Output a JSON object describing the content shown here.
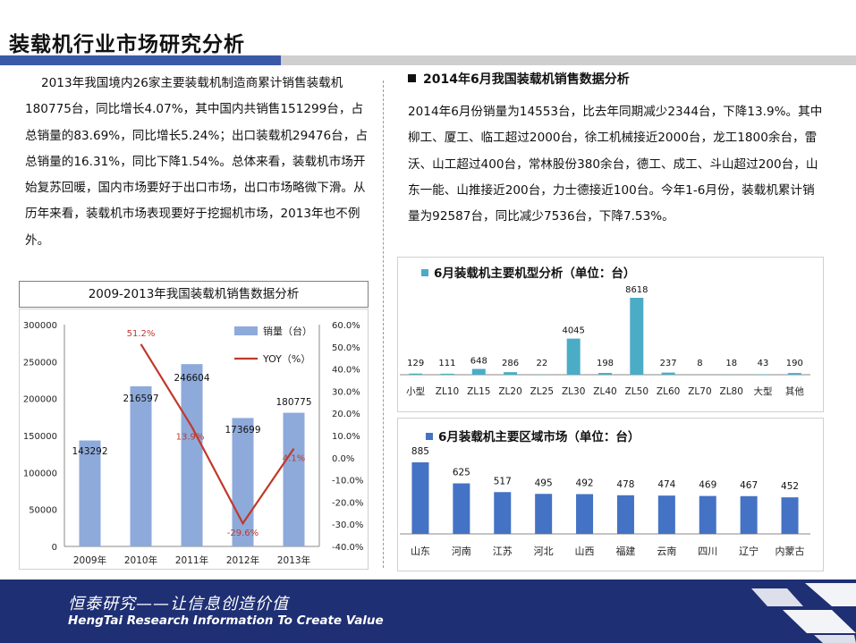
{
  "page": {
    "title": "装载机行业市场研究分析",
    "left_paragraph": "2013年我国境内26家主要装载机制造商累计销售装载机180775台，同比增长4.07%，其中国内共销售151299台，占总销量的83.69%，同比增长5.24%；出口装载机29476台，占总销量的16.31%，同比下降1.54%。总体来看，装载机市场开始复苏回暖，国内市场要好于出口市场，出口市场略微下滑。从历年来看，装载机市场表现要好于挖掘机市场，2013年也不例外。",
    "right_heading": "2014年6月我国装载机销售数据分析",
    "right_paragraph": "2014年6月份销量为14553台，比去年同期减少2344台，下降13.9%。其中柳工、厦工、临工超过2000台，徐工机械接近2000台，龙工1800余台，雷沃、山工超过400台，常林股份380余台，德工、成工、斗山超过200台，山东一能、山推接近200台，力士德接近100台。今年1-6月份，装载机累计销量为92587台，同比减少7536台，下降7.53%。",
    "chart1_box_title": "2009-2013年我国装载机销售数据分析"
  },
  "footer": {
    "slogan_cn": "恒泰研究——让信息创造价值",
    "slogan_en": "HengTai Research Information To Create Value"
  },
  "colors": {
    "bar_blue_light": "#8eaadb",
    "line_red": "#c0392b",
    "bar_teal": "#4bacc6",
    "bar_blue": "#4472c4",
    "footer_navy": "#1e2f73",
    "title_blue": "#3a5aa8"
  },
  "chart_data": [
    {
      "type": "bar",
      "secondary_type": "line",
      "categories": [
        "2009年",
        "2010年",
        "2011年",
        "2012年",
        "2013年"
      ],
      "series": [
        {
          "name": "销量（台）",
          "values": [
            143292,
            216597,
            246604,
            173699,
            180775
          ],
          "axis": "left",
          "labels": [
            "143292",
            "216597",
            "246604",
            "173699",
            "180775"
          ]
        },
        {
          "name": "YOY（%）",
          "values": [
            null,
            51.2,
            13.9,
            -29.6,
            4.1
          ],
          "axis": "right",
          "labels": [
            "",
            "51.2%",
            "13.9%",
            "-29.6%",
            "4.1%"
          ]
        }
      ],
      "ylim": [
        0,
        300000
      ],
      "y_ticks": [
        "0",
        "50000",
        "100000",
        "150000",
        "200000",
        "250000",
        "300000"
      ],
      "y2lim": [
        -40,
        60
      ],
      "y2_ticks": [
        "-40.0%",
        "-30.0%",
        "-20.0%",
        "-10.0%",
        "0.0%",
        "10.0%",
        "20.0%",
        "30.0%",
        "40.0%",
        "50.0%",
        "60.0%"
      ],
      "legend": "top-right"
    },
    {
      "type": "bar",
      "title": "6月装载机主要机型分析（单位：台）",
      "categories": [
        "小型",
        "ZL10",
        "ZL15",
        "ZL20",
        "ZL25",
        "ZL30",
        "ZL40",
        "ZL50",
        "ZL60",
        "ZL70",
        "ZL80",
        "大型",
        "其他"
      ],
      "values": [
        129,
        111,
        648,
        286,
        22,
        4045,
        198,
        8618,
        237,
        8,
        18,
        43,
        190
      ],
      "ylim": [
        0,
        8618
      ]
    },
    {
      "type": "bar",
      "title": "6月装载机主要区域市场（单位：台）",
      "categories": [
        "山东",
        "河南",
        "江苏",
        "河北",
        "山西",
        "福建",
        "云南",
        "四川",
        "辽宁",
        "内蒙古"
      ],
      "values": [
        885,
        625,
        517,
        495,
        492,
        478,
        474,
        469,
        467,
        452
      ],
      "ylim": [
        0,
        885
      ]
    }
  ]
}
